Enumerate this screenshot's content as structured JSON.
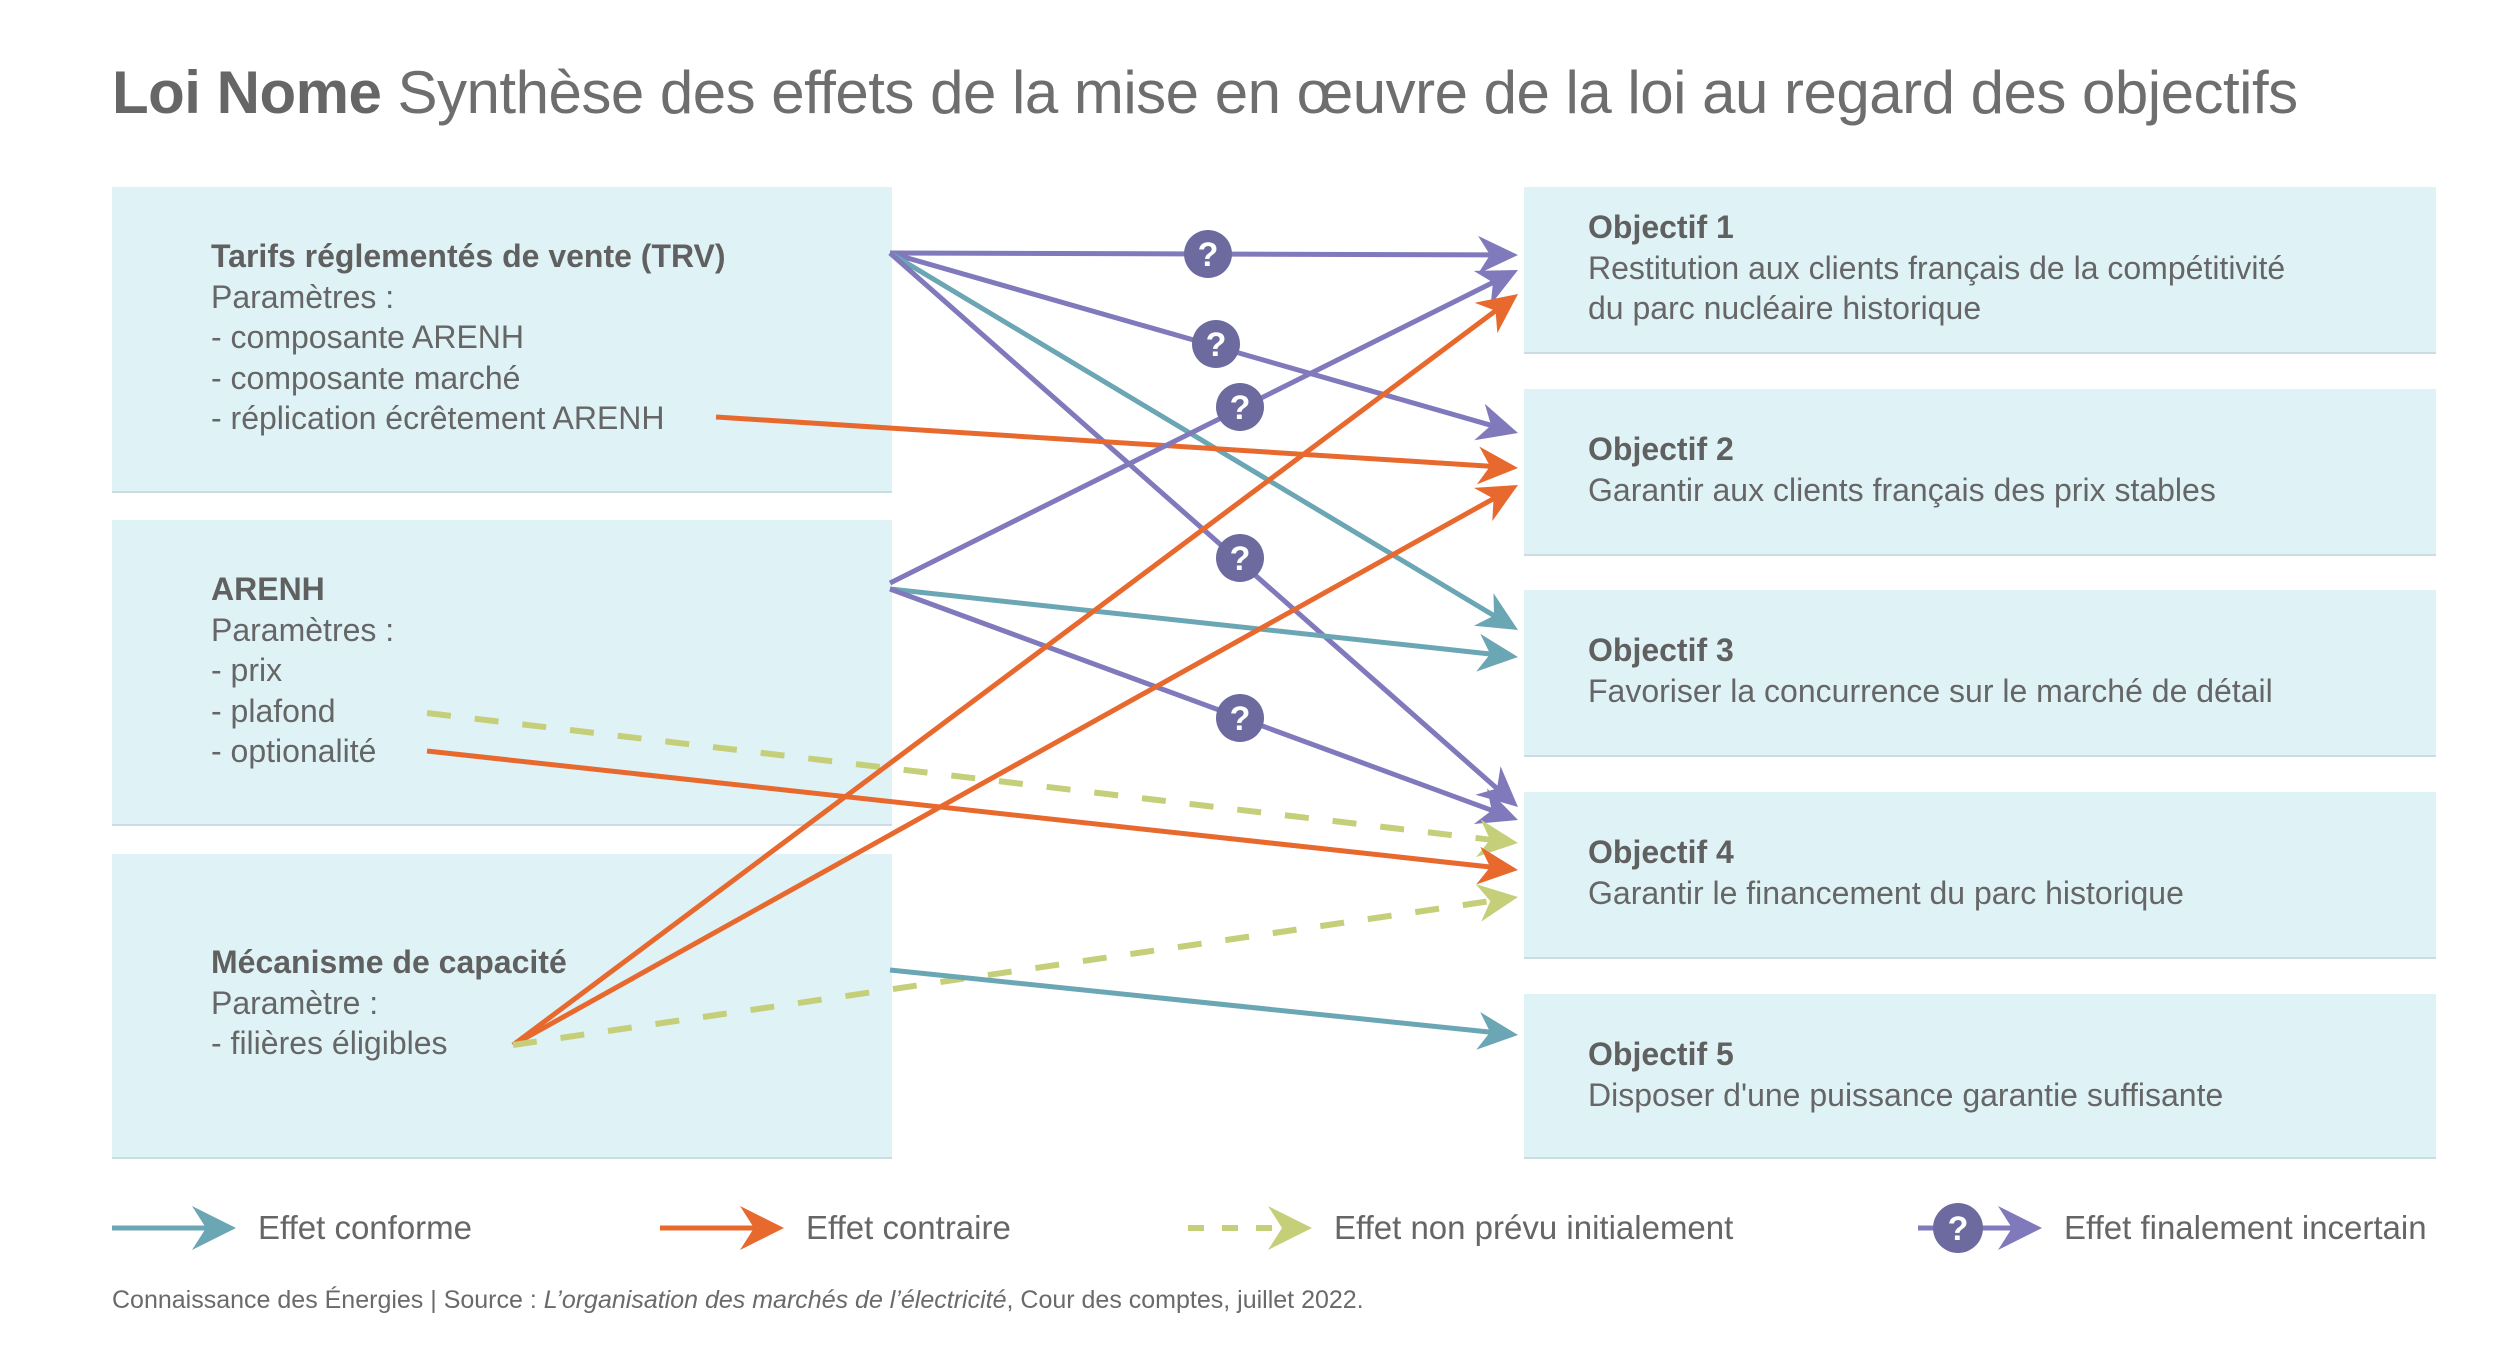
{
  "title": {
    "bold": "Loi Nome",
    "rest": "Synthèse des effets de la mise en œuvre de la loi au regard des objectifs"
  },
  "colors": {
    "box_bg": "#dff3f7",
    "conforme": "#6aa6b4",
    "contraire": "#e8692e",
    "non_prevu": "#c5cf7a",
    "incertain": "#8079bb",
    "incertain_badge": "#6c6a9e",
    "text": "#666666"
  },
  "sources": [
    {
      "id": "trv",
      "heading": "Tarifs réglementés de vente (TRV)",
      "lines": [
        "Paramètres :",
        "- composante ARENH",
        "- composante marché",
        "- réplication écrêtement ARENH"
      ]
    },
    {
      "id": "arenh",
      "heading": "ARENH",
      "lines": [
        "Paramètres :",
        "- prix",
        "- plafond",
        "- optionalité"
      ]
    },
    {
      "id": "capacite",
      "heading": "Mécanisme de capacité",
      "lines": [
        "Paramètre :",
        "- filières éligibles"
      ]
    }
  ],
  "objectives": [
    {
      "id": "obj1",
      "heading": "Objectif 1",
      "lines": [
        "Restitution aux clients français de la compétitivité",
        "du parc nucléaire historique"
      ]
    },
    {
      "id": "obj2",
      "heading": "Objectif 2",
      "lines": [
        "Garantir aux clients français des prix stables"
      ]
    },
    {
      "id": "obj3",
      "heading": "Objectif 3",
      "lines": [
        "Favoriser la concurrence sur le marché de détail"
      ]
    },
    {
      "id": "obj4",
      "heading": "Objectif 4",
      "lines": [
        "Garantir le financement du parc historique"
      ]
    },
    {
      "id": "obj5",
      "heading": "Objectif 5",
      "lines": [
        "Disposer d'une puissance garantie suffisante"
      ]
    }
  ],
  "connections": [
    {
      "from": "Tarifs réglementés de vente (TRV)",
      "to": "Objectif 1",
      "effect": "incertain"
    },
    {
      "from": "Tarifs réglementés de vente (TRV)",
      "to": "Objectif 2",
      "effect": "incertain"
    },
    {
      "from": "Tarifs réglementés de vente (TRV)",
      "to": "Objectif 3",
      "effect": "conforme"
    },
    {
      "from": "Tarifs réglementés de vente (TRV)",
      "to": "Objectif 4",
      "effect": "incertain"
    },
    {
      "from": "réplication écrêtement ARENH",
      "to": "Objectif 2",
      "effect": "contraire"
    },
    {
      "from": "ARENH",
      "to": "Objectif 1",
      "effect": "incertain"
    },
    {
      "from": "ARENH",
      "to": "Objectif 3",
      "effect": "conforme"
    },
    {
      "from": "ARENH",
      "to": "Objectif 4",
      "effect": "incertain"
    },
    {
      "from": "plafond",
      "to": "Objectif 4",
      "effect": "non_prevu"
    },
    {
      "from": "optionalité",
      "to": "Objectif 4",
      "effect": "contraire"
    },
    {
      "from": "filières éligibles",
      "to": "Objectif 1",
      "effect": "contraire"
    },
    {
      "from": "filières éligibles",
      "to": "Objectif 2",
      "effect": "contraire"
    },
    {
      "from": "filières éligibles",
      "to": "Objectif 4",
      "effect": "non_prevu"
    },
    {
      "from": "Mécanisme de capacité",
      "to": "Objectif 5",
      "effect": "conforme"
    }
  ],
  "legend": [
    {
      "effect": "conforme",
      "label": "Effet conforme"
    },
    {
      "effect": "contraire",
      "label": "Effet contraire"
    },
    {
      "effect": "non_prevu",
      "label": "Effet non prévu initialement"
    },
    {
      "effect": "incertain",
      "label": "Effet finalement incertain"
    }
  ],
  "uncertain_symbol": "?",
  "footer": {
    "prefix": "Connaissance des Énergies | Source : ",
    "italic": "L’organisation des marchés de l’électricité",
    "suffix": ", Cour des comptes, juillet 2022."
  }
}
